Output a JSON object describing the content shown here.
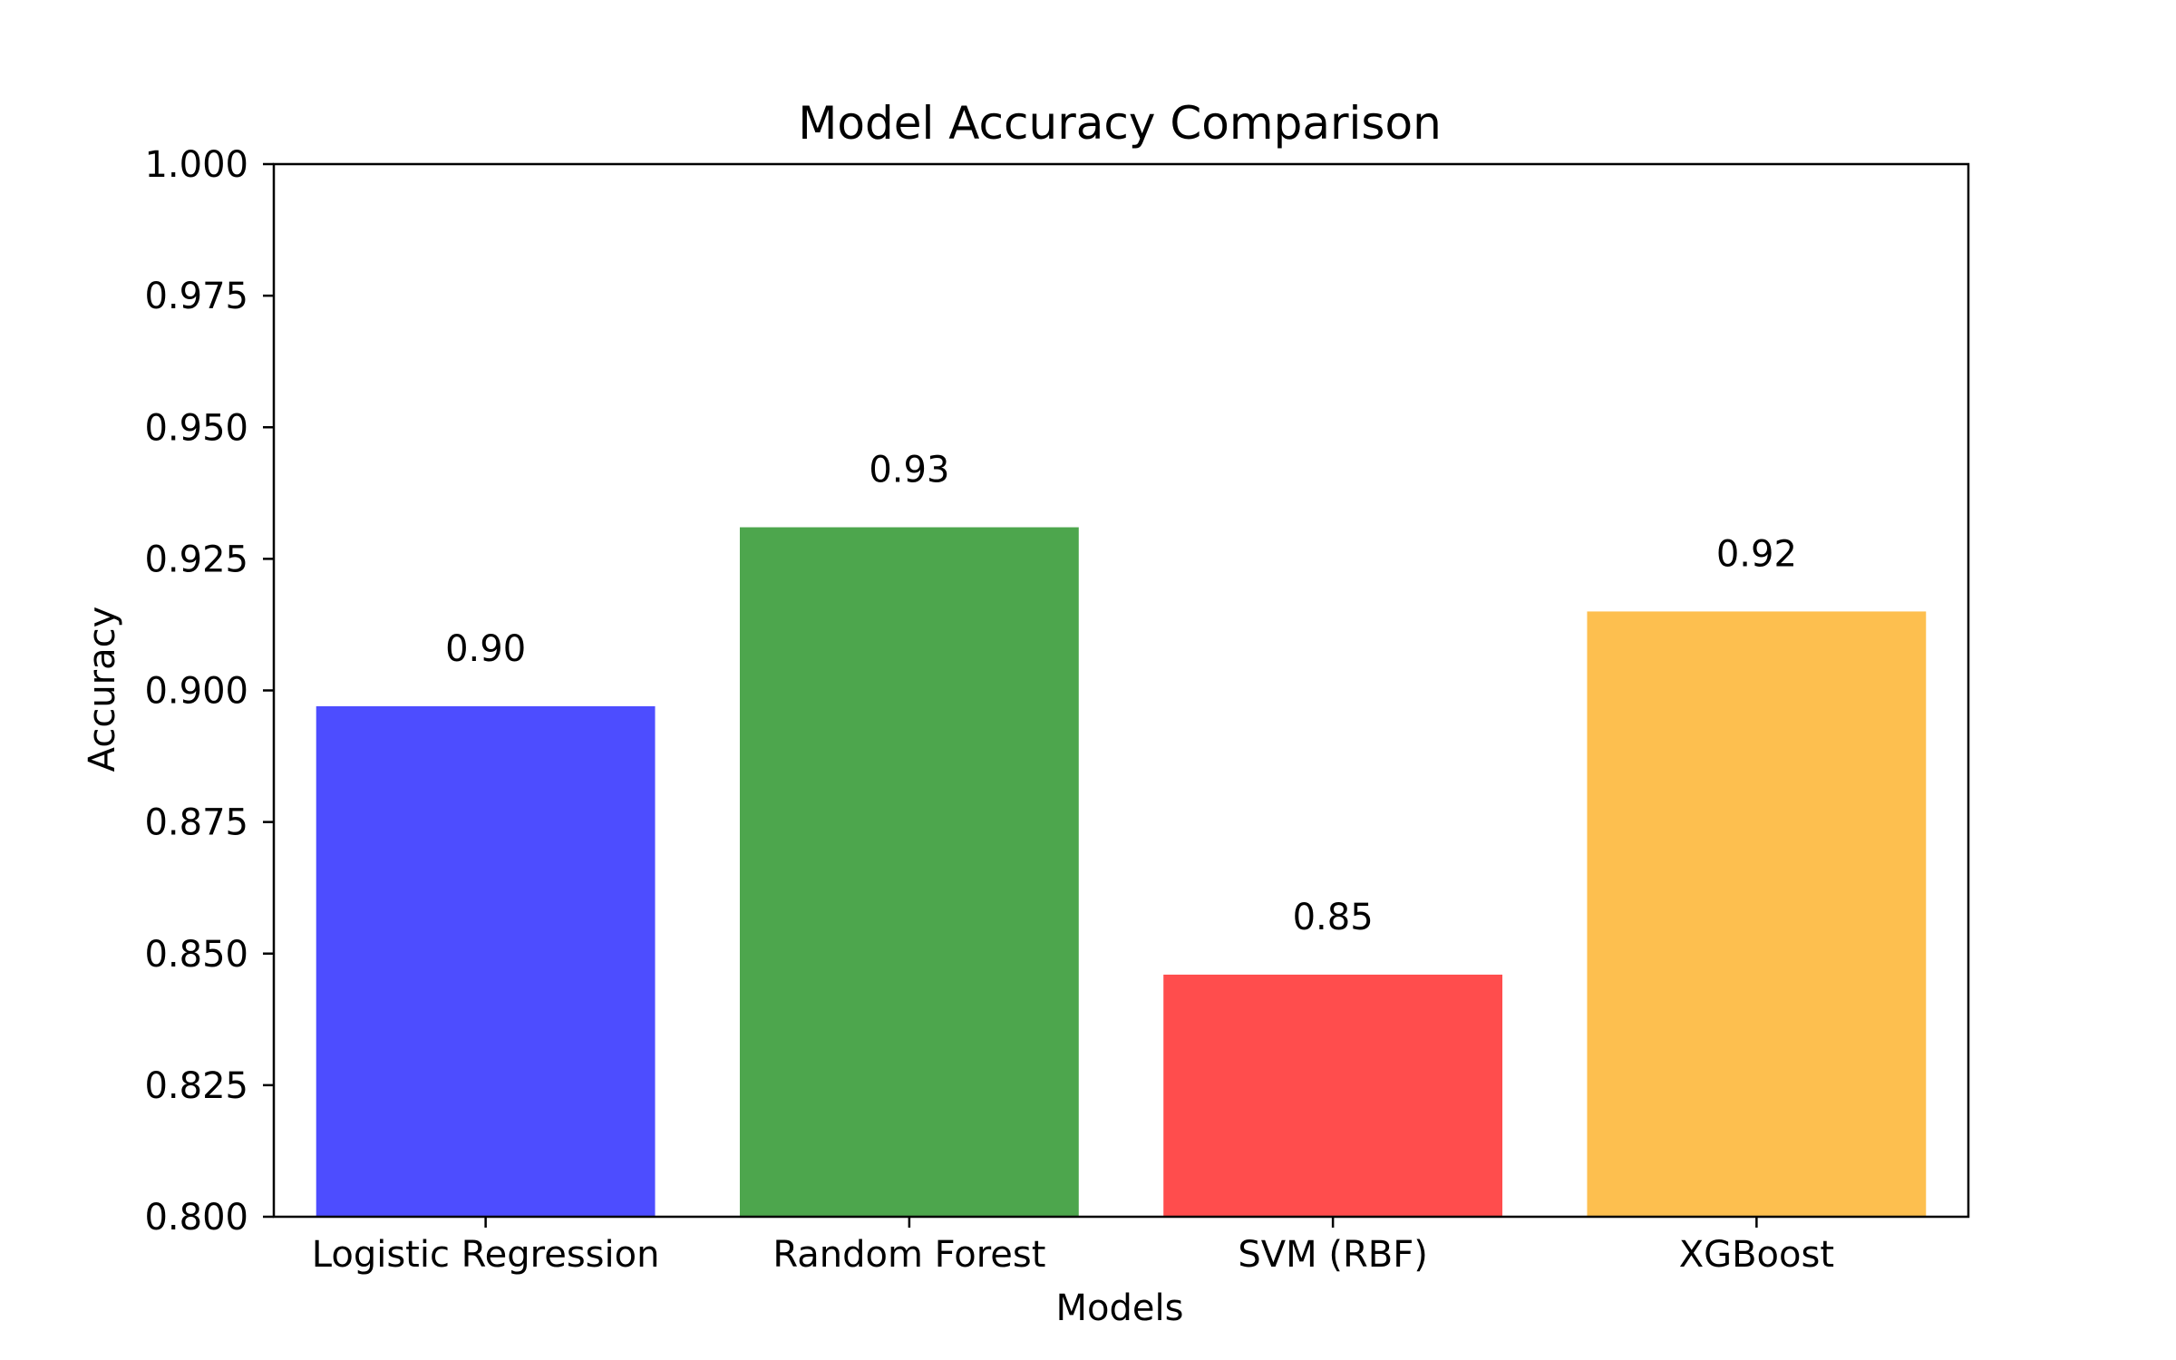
{
  "chart_data": {
    "type": "bar",
    "title": "Model Accuracy Comparison",
    "xlabel": "Models",
    "ylabel": "Accuracy",
    "categories": [
      "Logistic Regression",
      "Random Forest",
      "SVM (RBF)",
      "XGBoost"
    ],
    "values": [
      0.897,
      0.931,
      0.846,
      0.915
    ],
    "data_labels": [
      "0.90",
      "0.93",
      "0.85",
      "0.92"
    ],
    "colors": [
      "#4d4dff",
      "#4da64d",
      "#ff4d4d",
      "#fdbf4f"
    ],
    "ylim": [
      0.8,
      1.0
    ],
    "yticks": [
      0.8,
      0.825,
      0.85,
      0.875,
      0.9,
      0.925,
      0.95,
      0.975,
      1.0
    ],
    "ytick_labels": [
      "0.800",
      "0.825",
      "0.850",
      "0.875",
      "0.900",
      "0.925",
      "0.950",
      "0.975",
      "1.000"
    ],
    "grid": false,
    "legend": "none"
  }
}
